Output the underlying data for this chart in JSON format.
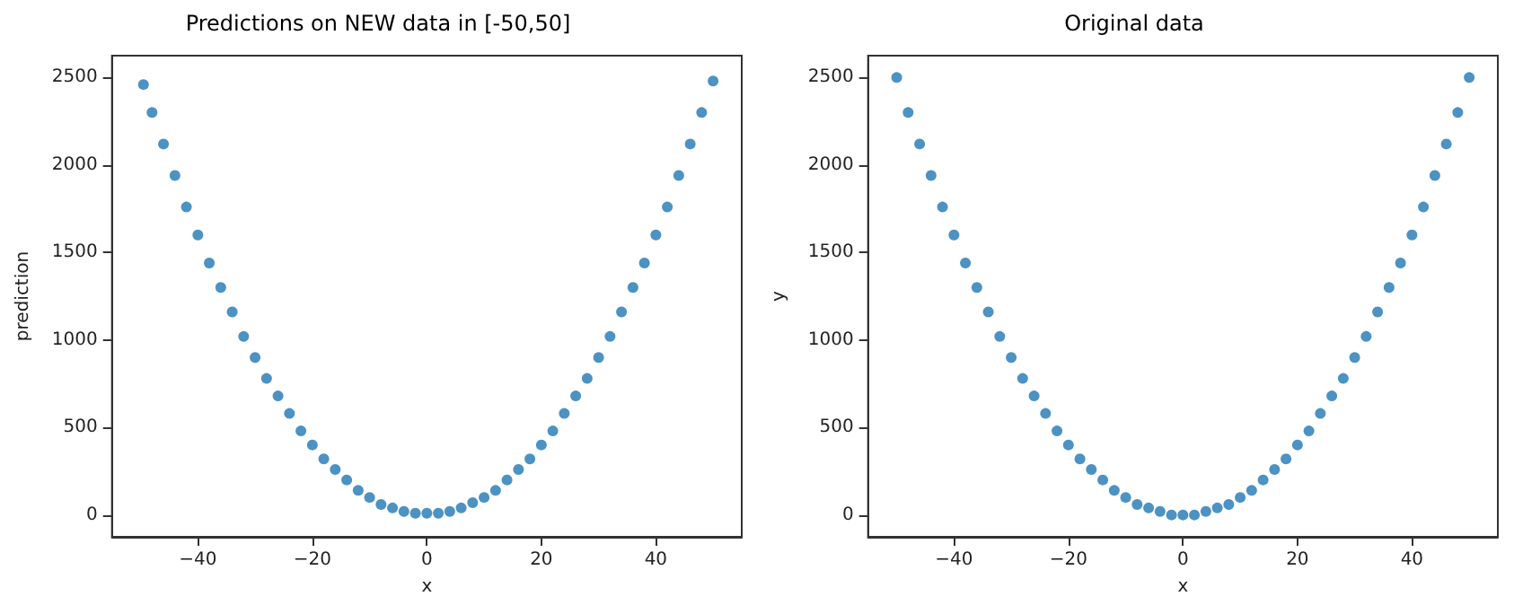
{
  "chart_data": [
    {
      "type": "scatter",
      "title": "Predictions on NEW data in [-50,50]",
      "xlabel": "x",
      "ylabel": "prediction",
      "color": "#1f77b4",
      "marker": "circle",
      "grid": false,
      "x": [
        -49.5,
        -48,
        -46,
        -44,
        -42,
        -40,
        -38,
        -36,
        -34,
        -32,
        -30,
        -28,
        -26,
        -24,
        -22,
        -20,
        -18,
        -16,
        -14,
        -12,
        -10,
        -8,
        -6,
        -4,
        -2,
        0,
        2,
        4,
        6,
        8,
        10,
        12,
        14,
        16,
        18,
        20,
        22,
        24,
        26,
        28,
        30,
        32,
        34,
        36,
        38,
        40,
        42,
        44,
        46,
        48,
        50
      ],
      "values": [
        2460,
        2300,
        2120,
        1940,
        1760,
        1600,
        1440,
        1300,
        1160,
        1020,
        900,
        780,
        680,
        580,
        480,
        400,
        320,
        260,
        200,
        140,
        100,
        60,
        40,
        20,
        10,
        10,
        10,
        20,
        40,
        70,
        100,
        140,
        200,
        260,
        320,
        400,
        480,
        580,
        680,
        780,
        900,
        1020,
        1160,
        1300,
        1440,
        1600,
        1760,
        1940,
        2120,
        2300,
        2480
      ],
      "xlim": [
        -55,
        55
      ],
      "ylim": [
        -125,
        2625
      ],
      "xticks": [
        -40,
        -20,
        0,
        20,
        40
      ],
      "yticks": [
        0,
        500,
        1000,
        1500,
        2000,
        2500
      ]
    },
    {
      "type": "scatter",
      "title": "Original data",
      "xlabel": "x",
      "ylabel": "y",
      "color": "#1f77b4",
      "marker": "circle",
      "grid": false,
      "x": [
        -50,
        -48,
        -46,
        -44,
        -42,
        -40,
        -38,
        -36,
        -34,
        -32,
        -30,
        -28,
        -26,
        -24,
        -22,
        -20,
        -18,
        -16,
        -14,
        -12,
        -10,
        -8,
        -6,
        -4,
        -2,
        0,
        2,
        4,
        6,
        8,
        10,
        12,
        14,
        16,
        18,
        20,
        22,
        24,
        26,
        28,
        30,
        32,
        34,
        36,
        38,
        40,
        42,
        44,
        46,
        48,
        50
      ],
      "values": [
        2500,
        2300,
        2120,
        1940,
        1760,
        1600,
        1440,
        1300,
        1160,
        1020,
        900,
        780,
        680,
        580,
        480,
        400,
        320,
        260,
        200,
        140,
        100,
        60,
        40,
        20,
        0,
        0,
        0,
        20,
        40,
        60,
        100,
        140,
        200,
        260,
        320,
        400,
        480,
        580,
        680,
        780,
        900,
        1020,
        1160,
        1300,
        1440,
        1600,
        1760,
        1940,
        2120,
        2300,
        2500
      ],
      "xlim": [
        -55,
        55
      ],
      "ylim": [
        -125,
        2625
      ],
      "xticks": [
        -40,
        -20,
        0,
        20,
        40
      ],
      "yticks": [
        0,
        500,
        1000,
        1500,
        2000,
        2500
      ]
    }
  ]
}
